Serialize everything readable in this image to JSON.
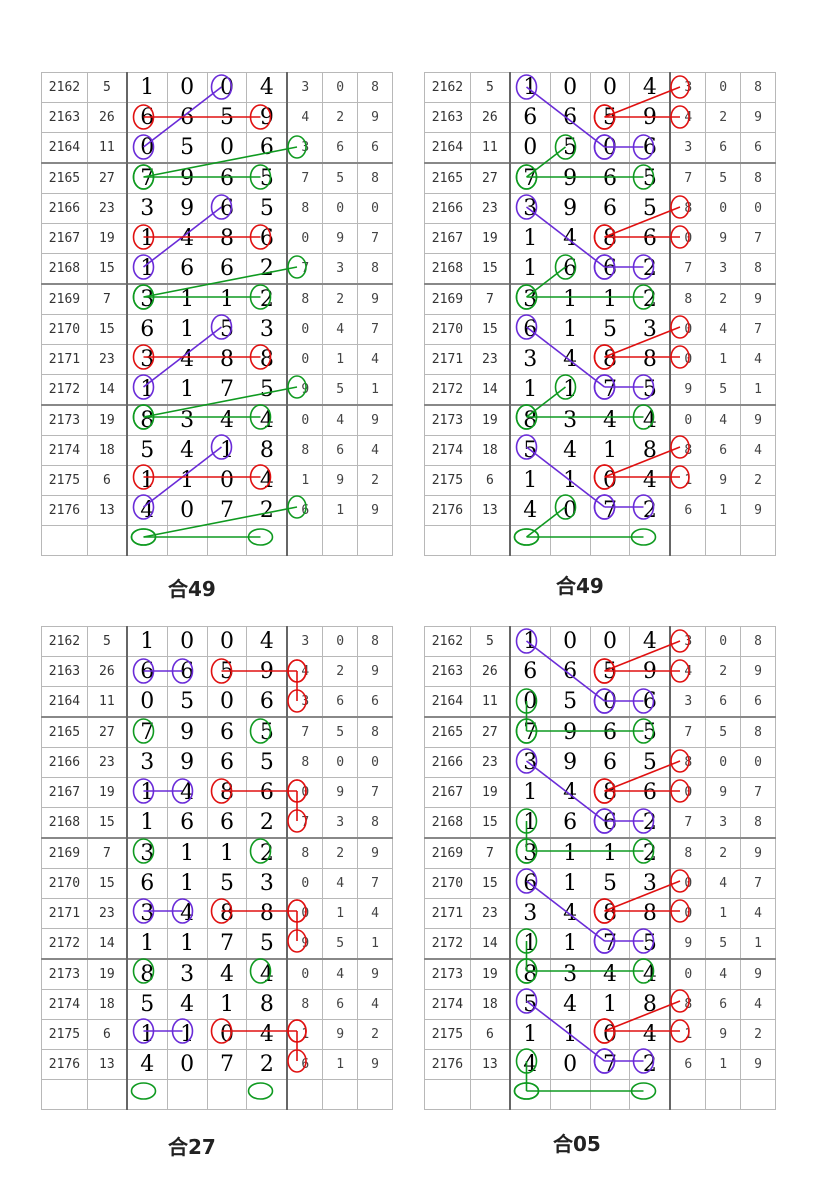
{
  "colors": {
    "red": "#e01010",
    "purple": "#6a2bd8",
    "green": "#0f9a20",
    "grid": "#b8b8b8"
  },
  "rows": [
    {
      "issue": "2162",
      "sum": "5",
      "d": [
        "1",
        "0",
        "0",
        "4"
      ],
      "t": [
        "3",
        "0",
        "8"
      ]
    },
    {
      "issue": "2163",
      "sum": "26",
      "d": [
        "6",
        "6",
        "5",
        "9"
      ],
      "t": [
        "4",
        "2",
        "9"
      ]
    },
    {
      "issue": "2164",
      "sum": "11",
      "d": [
        "0",
        "5",
        "0",
        "6"
      ],
      "t": [
        "3",
        "6",
        "6"
      ]
    },
    {
      "issue": "2165",
      "sum": "27",
      "d": [
        "7",
        "9",
        "6",
        "5"
      ],
      "t": [
        "7",
        "5",
        "8"
      ]
    },
    {
      "issue": "2166",
      "sum": "23",
      "d": [
        "3",
        "9",
        "6",
        "5"
      ],
      "t": [
        "8",
        "0",
        "0"
      ]
    },
    {
      "issue": "2167",
      "sum": "19",
      "d": [
        "1",
        "4",
        "8",
        "6"
      ],
      "t": [
        "0",
        "9",
        "7"
      ]
    },
    {
      "issue": "2168",
      "sum": "15",
      "d": [
        "1",
        "6",
        "6",
        "2"
      ],
      "t": [
        "7",
        "3",
        "8"
      ]
    },
    {
      "issue": "2169",
      "sum": "7",
      "d": [
        "3",
        "1",
        "1",
        "2"
      ],
      "t": [
        "8",
        "2",
        "9"
      ]
    },
    {
      "issue": "2170",
      "sum": "15",
      "d": [
        "6",
        "1",
        "5",
        "3"
      ],
      "t": [
        "0",
        "4",
        "7"
      ]
    },
    {
      "issue": "2171",
      "sum": "23",
      "d": [
        "3",
        "4",
        "8",
        "8"
      ],
      "t": [
        "0",
        "1",
        "4"
      ]
    },
    {
      "issue": "2172",
      "sum": "14",
      "d": [
        "1",
        "1",
        "7",
        "5"
      ],
      "t": [
        "9",
        "5",
        "1"
      ]
    },
    {
      "issue": "2173",
      "sum": "19",
      "d": [
        "8",
        "3",
        "4",
        "4"
      ],
      "t": [
        "0",
        "4",
        "9"
      ]
    },
    {
      "issue": "2174",
      "sum": "18",
      "d": [
        "5",
        "4",
        "1",
        "8"
      ],
      "t": [
        "8",
        "6",
        "4"
      ]
    },
    {
      "issue": "2175",
      "sum": "6",
      "d": [
        "1",
        "1",
        "0",
        "4"
      ],
      "t": [
        "1",
        "9",
        "2"
      ]
    },
    {
      "issue": "2176",
      "sum": "13",
      "d": [
        "4",
        "0",
        "7",
        "2"
      ],
      "t": [
        "6",
        "1",
        "9"
      ]
    }
  ],
  "panels": [
    {
      "caption": "合49",
      "marks": [
        {
          "c": "purple",
          "p": [
            [
              0,
              3
            ],
            [
              2,
              1
            ]
          ]
        },
        {
          "c": "red",
          "p": [
            [
              1,
              1
            ],
            [
              1,
              4
            ]
          ]
        },
        {
          "c": "green",
          "p": [
            [
              2,
              5
            ],
            [
              3,
              1
            ]
          ]
        },
        {
          "c": "green",
          "p": [
            [
              3,
              1
            ],
            [
              3,
              4
            ]
          ]
        },
        {
          "c": "purple",
          "p": [
            [
              4,
              3
            ],
            [
              6,
              1
            ]
          ]
        },
        {
          "c": "red",
          "p": [
            [
              5,
              1
            ],
            [
              5,
              4
            ]
          ]
        },
        {
          "c": "green",
          "p": [
            [
              6,
              5
            ],
            [
              7,
              1
            ]
          ]
        },
        {
          "c": "green",
          "p": [
            [
              7,
              1
            ],
            [
              7,
              4
            ]
          ]
        },
        {
          "c": "purple",
          "p": [
            [
              8,
              3
            ],
            [
              10,
              1
            ]
          ]
        },
        {
          "c": "red",
          "p": [
            [
              9,
              1
            ],
            [
              9,
              4
            ]
          ]
        },
        {
          "c": "green",
          "p": [
            [
              10,
              5
            ],
            [
              11,
              1
            ]
          ]
        },
        {
          "c": "green",
          "p": [
            [
              11,
              1
            ],
            [
              11,
              4
            ]
          ]
        },
        {
          "c": "purple",
          "p": [
            [
              12,
              3
            ],
            [
              14,
              1
            ]
          ]
        },
        {
          "c": "red",
          "p": [
            [
              13,
              1
            ],
            [
              13,
              4
            ]
          ]
        },
        {
          "c": "green",
          "p": [
            [
              14,
              5
            ],
            [
              15,
              1
            ]
          ]
        },
        {
          "c": "green",
          "p": [
            [
              15,
              1
            ],
            [
              15,
              4
            ]
          ]
        }
      ]
    },
    {
      "caption": "合49",
      "marks": [
        {
          "c": "purple",
          "p": [
            [
              0,
              1
            ],
            [
              2,
              3
            ]
          ]
        },
        {
          "c": "purple",
          "p": [
            [
              2,
              3
            ],
            [
              2,
              4
            ]
          ]
        },
        {
          "c": "red",
          "p": [
            [
              0,
              5
            ],
            [
              1,
              3
            ]
          ]
        },
        {
          "c": "red",
          "p": [
            [
              1,
              3
            ],
            [
              1,
              5
            ]
          ]
        },
        {
          "c": "green",
          "p": [
            [
              2,
              2
            ],
            [
              3,
              1
            ]
          ]
        },
        {
          "c": "green",
          "p": [
            [
              3,
              1
            ],
            [
              3,
              4
            ]
          ]
        },
        {
          "c": "purple",
          "p": [
            [
              4,
              1
            ],
            [
              6,
              3
            ]
          ]
        },
        {
          "c": "purple",
          "p": [
            [
              6,
              3
            ],
            [
              6,
              4
            ]
          ]
        },
        {
          "c": "red",
          "p": [
            [
              4,
              5
            ],
            [
              5,
              3
            ]
          ]
        },
        {
          "c": "red",
          "p": [
            [
              5,
              3
            ],
            [
              5,
              5
            ]
          ]
        },
        {
          "c": "green",
          "p": [
            [
              6,
              2
            ],
            [
              7,
              1
            ]
          ]
        },
        {
          "c": "green",
          "p": [
            [
              7,
              1
            ],
            [
              7,
              4
            ]
          ]
        },
        {
          "c": "purple",
          "p": [
            [
              8,
              1
            ],
            [
              10,
              3
            ]
          ]
        },
        {
          "c": "purple",
          "p": [
            [
              10,
              3
            ],
            [
              10,
              4
            ]
          ]
        },
        {
          "c": "red",
          "p": [
            [
              8,
              5
            ],
            [
              9,
              3
            ]
          ]
        },
        {
          "c": "red",
          "p": [
            [
              9,
              3
            ],
            [
              9,
              5
            ]
          ]
        },
        {
          "c": "green",
          "p": [
            [
              10,
              2
            ],
            [
              11,
              1
            ]
          ]
        },
        {
          "c": "green",
          "p": [
            [
              11,
              1
            ],
            [
              11,
              4
            ]
          ]
        },
        {
          "c": "purple",
          "p": [
            [
              12,
              1
            ],
            [
              14,
              3
            ]
          ]
        },
        {
          "c": "purple",
          "p": [
            [
              14,
              3
            ],
            [
              14,
              4
            ]
          ]
        },
        {
          "c": "red",
          "p": [
            [
              12,
              5
            ],
            [
              13,
              3
            ]
          ]
        },
        {
          "c": "red",
          "p": [
            [
              13,
              3
            ],
            [
              13,
              5
            ]
          ]
        },
        {
          "c": "green",
          "p": [
            [
              14,
              2
            ],
            [
              15,
              1
            ]
          ]
        },
        {
          "c": "green",
          "p": [
            [
              15,
              1
            ],
            [
              15,
              4
            ]
          ]
        }
      ]
    },
    {
      "caption": "合27",
      "marks": [
        {
          "c": "purple",
          "p": [
            [
              1,
              1
            ],
            [
              1,
              2
            ]
          ]
        },
        {
          "c": "red",
          "p": [
            [
              1,
              3
            ],
            [
              1,
              5
            ]
          ]
        },
        {
          "c": "red",
          "p": [
            [
              1,
              5
            ],
            [
              2,
              5
            ]
          ]
        },
        {
          "c": "green",
          "p": [
            [
              3,
              1
            ]
          ]
        },
        {
          "c": "green",
          "p": [
            [
              3,
              4
            ]
          ]
        },
        {
          "c": "purple",
          "p": [
            [
              5,
              1
            ],
            [
              5,
              2
            ]
          ]
        },
        {
          "c": "red",
          "p": [
            [
              5,
              3
            ],
            [
              5,
              5
            ]
          ]
        },
        {
          "c": "red",
          "p": [
            [
              5,
              5
            ],
            [
              6,
              5
            ]
          ]
        },
        {
          "c": "green",
          "p": [
            [
              7,
              1
            ]
          ]
        },
        {
          "c": "green",
          "p": [
            [
              7,
              4
            ]
          ]
        },
        {
          "c": "purple",
          "p": [
            [
              9,
              1
            ],
            [
              9,
              2
            ]
          ]
        },
        {
          "c": "red",
          "p": [
            [
              9,
              3
            ],
            [
              9,
              5
            ]
          ]
        },
        {
          "c": "red",
          "p": [
            [
              9,
              5
            ],
            [
              10,
              5
            ]
          ]
        },
        {
          "c": "green",
          "p": [
            [
              11,
              1
            ]
          ]
        },
        {
          "c": "green",
          "p": [
            [
              11,
              4
            ]
          ]
        },
        {
          "c": "purple",
          "p": [
            [
              13,
              1
            ],
            [
              13,
              2
            ]
          ]
        },
        {
          "c": "red",
          "p": [
            [
              13,
              3
            ],
            [
              13,
              5
            ]
          ]
        },
        {
          "c": "red",
          "p": [
            [
              13,
              5
            ],
            [
              14,
              5
            ]
          ]
        },
        {
          "c": "green",
          "p": [
            [
              15,
              1
            ]
          ]
        },
        {
          "c": "green",
          "p": [
            [
              15,
              4
            ]
          ]
        }
      ]
    },
    {
      "caption": "合05",
      "marks": [
        {
          "c": "purple",
          "p": [
            [
              0,
              1
            ],
            [
              2,
              3
            ]
          ]
        },
        {
          "c": "purple",
          "p": [
            [
              2,
              3
            ],
            [
              2,
              4
            ]
          ]
        },
        {
          "c": "red",
          "p": [
            [
              0,
              5
            ],
            [
              1,
              3
            ]
          ]
        },
        {
          "c": "red",
          "p": [
            [
              1,
              3
            ],
            [
              1,
              5
            ]
          ]
        },
        {
          "c": "green",
          "p": [
            [
              2,
              1
            ],
            [
              3,
              1
            ]
          ]
        },
        {
          "c": "green",
          "p": [
            [
              3,
              1
            ],
            [
              3,
              4
            ]
          ]
        },
        {
          "c": "purple",
          "p": [
            [
              4,
              1
            ],
            [
              6,
              3
            ]
          ]
        },
        {
          "c": "purple",
          "p": [
            [
              6,
              3
            ],
            [
              6,
              4
            ]
          ]
        },
        {
          "c": "red",
          "p": [
            [
              4,
              5
            ],
            [
              5,
              3
            ]
          ]
        },
        {
          "c": "red",
          "p": [
            [
              5,
              3
            ],
            [
              5,
              5
            ]
          ]
        },
        {
          "c": "green",
          "p": [
            [
              6,
              1
            ],
            [
              7,
              1
            ]
          ]
        },
        {
          "c": "green",
          "p": [
            [
              7,
              1
            ],
            [
              7,
              4
            ]
          ]
        },
        {
          "c": "purple",
          "p": [
            [
              8,
              1
            ],
            [
              10,
              3
            ]
          ]
        },
        {
          "c": "purple",
          "p": [
            [
              10,
              3
            ],
            [
              10,
              4
            ]
          ]
        },
        {
          "c": "red",
          "p": [
            [
              8,
              5
            ],
            [
              9,
              3
            ]
          ]
        },
        {
          "c": "red",
          "p": [
            [
              9,
              3
            ],
            [
              9,
              5
            ]
          ]
        },
        {
          "c": "green",
          "p": [
            [
              10,
              1
            ],
            [
              11,
              1
            ]
          ]
        },
        {
          "c": "green",
          "p": [
            [
              11,
              1
            ],
            [
              11,
              4
            ]
          ]
        },
        {
          "c": "purple",
          "p": [
            [
              12,
              1
            ],
            [
              14,
              3
            ]
          ]
        },
        {
          "c": "purple",
          "p": [
            [
              14,
              3
            ],
            [
              14,
              4
            ]
          ]
        },
        {
          "c": "red",
          "p": [
            [
              12,
              5
            ],
            [
              13,
              3
            ]
          ]
        },
        {
          "c": "red",
          "p": [
            [
              13,
              3
            ],
            [
              13,
              5
            ]
          ]
        },
        {
          "c": "green",
          "p": [
            [
              14,
              1
            ],
            [
              15,
              1
            ]
          ]
        },
        {
          "c": "green",
          "p": [
            [
              15,
              1
            ],
            [
              15,
              4
            ]
          ]
        }
      ]
    }
  ]
}
